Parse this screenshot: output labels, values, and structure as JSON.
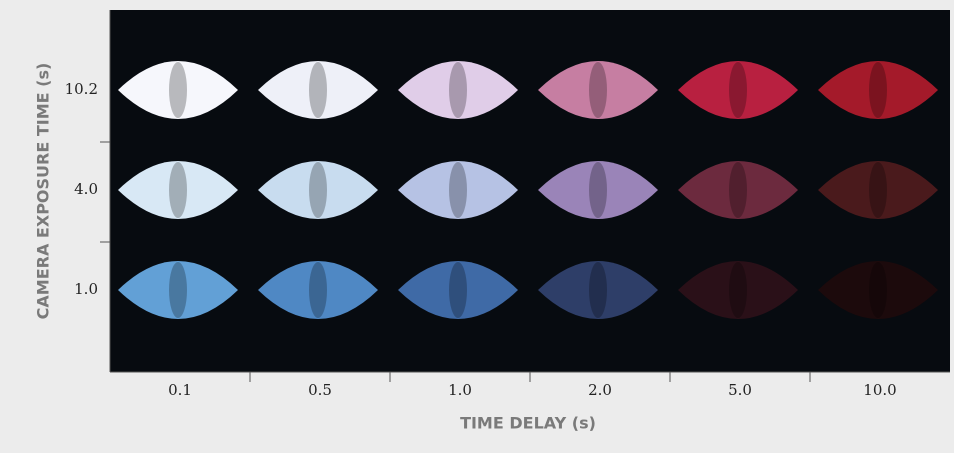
{
  "chart_data": {
    "type": "image-grid",
    "x_label": "TIME DELAY (s)",
    "y_label": "CAMERA EXPOSURE TIME (s)",
    "categories": [
      "0.1",
      "0.5",
      "1.0",
      "2.0",
      "5.0",
      "10.0"
    ],
    "rows": [
      "10.2",
      "4.0",
      "1.0"
    ],
    "cell_colors": [
      [
        "#f6f7fc",
        "#eef0f8",
        "#e0cde8",
        "#c67ea2",
        "#b82040",
        "#a41a2a"
      ],
      [
        "#d8e8f5",
        "#c8dcef",
        "#b6c2e4",
        "#9a84b8",
        "#6c2a3e",
        "#4a1a1c"
      ],
      [
        "#62a0d6",
        "#4f88c4",
        "#3f6aa6",
        "#2e3e68",
        "#2a1018",
        "#1c0a0c"
      ]
    ],
    "background": "#070b10"
  }
}
